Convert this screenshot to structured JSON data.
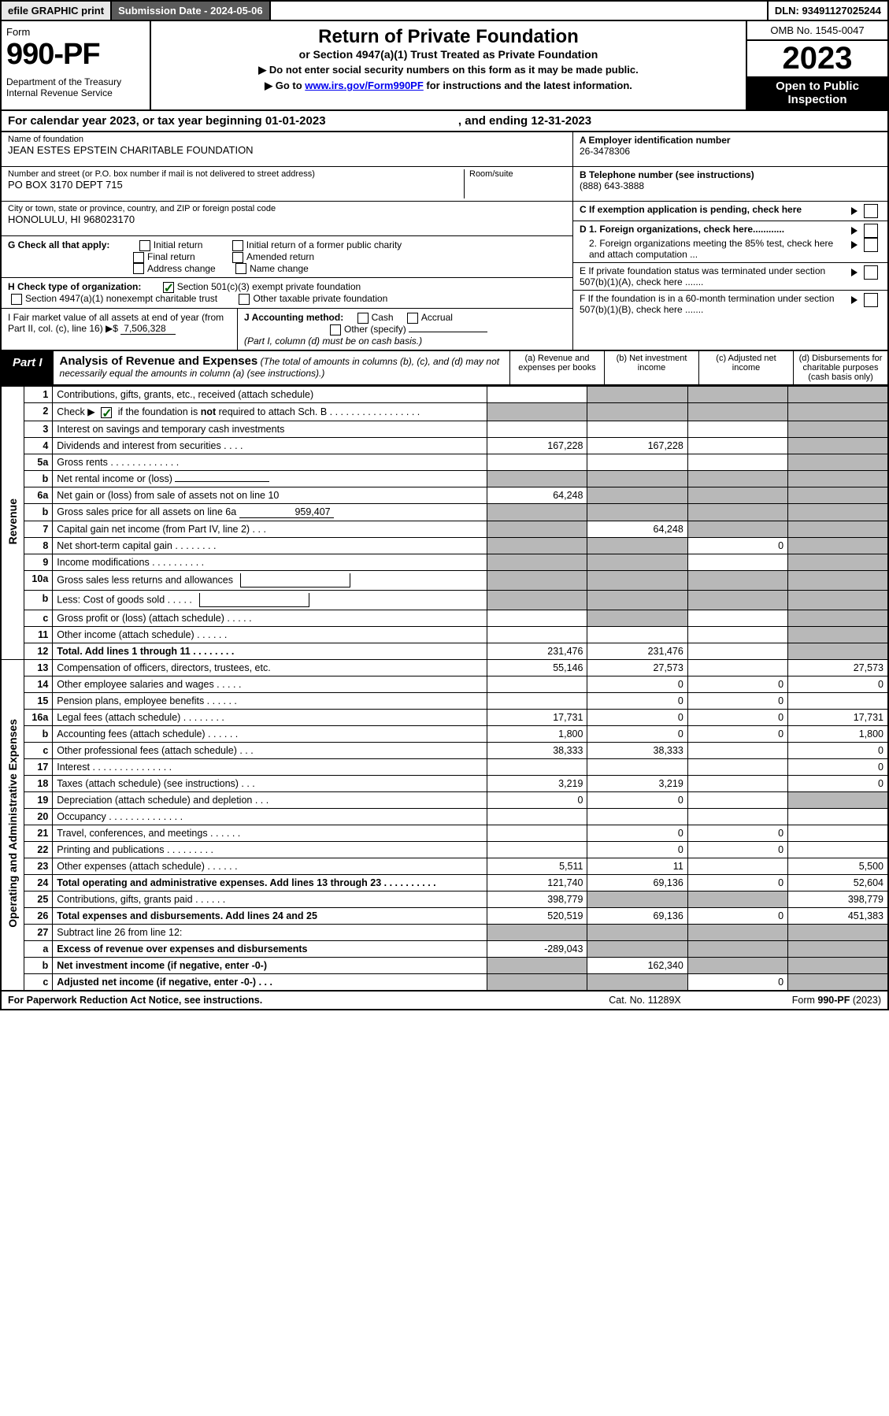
{
  "topbar": {
    "efile": "efile GRAPHIC print",
    "subdate": "Submission Date - 2024-05-06",
    "dln": "DLN: 93491127025244"
  },
  "header": {
    "formword": "Form",
    "formno": "990-PF",
    "dept": "Department of the Treasury\nInternal Revenue Service",
    "title": "Return of Private Foundation",
    "subtitle": "or Section 4947(a)(1) Trust Treated as Private Foundation",
    "instr1": "▶ Do not enter social security numbers on this form as it may be made public.",
    "instr2_pre": "▶ Go to ",
    "instr2_link": "www.irs.gov/Form990PF",
    "instr2_post": " for instructions and the latest information.",
    "omb": "OMB No. 1545-0047",
    "year": "2023",
    "open": "Open to Public Inspection"
  },
  "period": {
    "text_pre": "For calendar year 2023, or tax year beginning ",
    "begin": "01-01-2023",
    "text_mid": ", and ending ",
    "end": "12-31-2023"
  },
  "entity": {
    "name_lbl": "Name of foundation",
    "name_val": "JEAN ESTES EPSTEIN CHARITABLE FOUNDATION",
    "addr_lbl": "Number and street (or P.O. box number if mail is not delivered to street address)",
    "addr_val": "PO BOX 3170 DEPT 715",
    "room_lbl": "Room/suite",
    "city_lbl": "City or town, state or province, country, and ZIP or foreign postal code",
    "city_val": "HONOLULU, HI  968023170",
    "a_lbl": "A Employer identification number",
    "a_val": "26-3478306",
    "b_lbl": "B Telephone number (see instructions)",
    "b_val": "(888) 643-3888",
    "c_lbl": "C If exemption application is pending, check here",
    "d1": "D 1. Foreign organizations, check here............",
    "d2": "2. Foreign organizations meeting the 85% test, check here and attach computation ...",
    "e_lbl": "E  If private foundation status was terminated under section 507(b)(1)(A), check here .......",
    "f_lbl": "F  If the foundation is in a 60-month termination under section 507(b)(1)(B), check here .......",
    "g_lbl": "G Check all that apply:",
    "g_opts": [
      "Initial return",
      "Initial return of a former public charity",
      "Final return",
      "Amended return",
      "Address change",
      "Name change"
    ],
    "h_lbl": "H Check type of organization:",
    "h_opt1": "Section 501(c)(3) exempt private foundation",
    "h_opt2": "Section 4947(a)(1) nonexempt charitable trust",
    "h_opt3": "Other taxable private foundation",
    "i_lbl": "I Fair market value of all assets at end of year (from Part II, col. (c), line 16) ▶$ ",
    "i_val": "7,506,328",
    "j_lbl": "J Accounting method:",
    "j_opts": [
      "Cash",
      "Accrual",
      "Other (specify)"
    ],
    "j_note": "(Part I, column (d) must be on cash basis.)"
  },
  "part1": {
    "tab": "Part I",
    "title": "Analysis of Revenue and Expenses",
    "title_note": "(The total of amounts in columns (b), (c), and (d) may not necessarily equal the amounts in column (a) (see instructions).)",
    "col_a": "(a)   Revenue and expenses per books",
    "col_b": "(b)   Net investment income",
    "col_c": "(c)   Adjusted net income",
    "col_d": "(d)   Disbursements for charitable purposes (cash basis only)",
    "side_rev": "Revenue",
    "side_exp": "Operating and Administrative Expenses"
  },
  "rows": [
    {
      "ln": "1",
      "desc": "Contributions, gifts, grants, etc., received (attach schedule)",
      "a": "",
      "b": "shade",
      "c": "shade",
      "d": "shade"
    },
    {
      "ln": "2",
      "desc": "Check ▶ ☑ if the foundation is not required to attach Sch. B  .  .  .  .  .  .  .  .  .  .  .  .  .  .  .  .  .",
      "a": "shade",
      "b": "shade",
      "c": "shade",
      "d": "shade",
      "checked": true
    },
    {
      "ln": "3",
      "desc": "Interest on savings and temporary cash investments",
      "a": "",
      "b": "",
      "c": "",
      "d": "shade"
    },
    {
      "ln": "4",
      "desc": "Dividends and interest from securities  .  .  .  .",
      "a": "167,228",
      "b": "167,228",
      "c": "",
      "d": "shade"
    },
    {
      "ln": "5a",
      "desc": "Gross rents  .  .  .  .  .  .  .  .  .  .  .  .  .",
      "a": "",
      "b": "",
      "c": "",
      "d": "shade"
    },
    {
      "ln": "b",
      "desc": "Net rental income or (loss) ________",
      "a": "shade",
      "b": "shade",
      "c": "shade",
      "d": "shade"
    },
    {
      "ln": "6a",
      "desc": "Net gain or (loss) from sale of assets not on line 10",
      "a": "64,248",
      "b": "shade",
      "c": "shade",
      "d": "shade"
    },
    {
      "ln": "b",
      "desc": "Gross sales price for all assets on line 6a ________",
      "a": "shade",
      "b": "shade",
      "c": "shade",
      "d": "shade",
      "sub": "959,407"
    },
    {
      "ln": "7",
      "desc": "Capital gain net income (from Part IV, line 2)  .  .  .",
      "a": "shade",
      "b": "64,248",
      "c": "shade",
      "d": "shade"
    },
    {
      "ln": "8",
      "desc": "Net short-term capital gain  .  .  .  .  .  .  .  .",
      "a": "shade",
      "b": "shade",
      "c": "0",
      "d": "shade"
    },
    {
      "ln": "9",
      "desc": "Income modifications  .  .  .  .  .  .  .  .  .  .",
      "a": "shade",
      "b": "shade",
      "c": "",
      "d": "shade"
    },
    {
      "ln": "10a",
      "desc": "Gross sales less returns and allowances ____",
      "a": "shade",
      "b": "shade",
      "c": "shade",
      "d": "shade"
    },
    {
      "ln": "b",
      "desc": "Less: Cost of goods sold  .  .  .  .  . ____",
      "a": "shade",
      "b": "shade",
      "c": "shade",
      "d": "shade"
    },
    {
      "ln": "c",
      "desc": "Gross profit or (loss) (attach schedule)  .  .  .  .  .",
      "a": "",
      "b": "shade",
      "c": "",
      "d": "shade"
    },
    {
      "ln": "11",
      "desc": "Other income (attach schedule)  .  .  .  .  .  .",
      "a": "",
      "b": "",
      "c": "",
      "d": "shade"
    },
    {
      "ln": "12",
      "desc": "Total. Add lines 1 through 11  .  .  .  .  .  .  .  .",
      "a": "231,476",
      "b": "231,476",
      "c": "",
      "d": "shade",
      "bold": true
    },
    {
      "ln": "13",
      "desc": "Compensation of officers, directors, trustees, etc.",
      "a": "55,146",
      "b": "27,573",
      "c": "",
      "d": "27,573"
    },
    {
      "ln": "14",
      "desc": "Other employee salaries and wages  .  .  .  .  .",
      "a": "",
      "b": "0",
      "c": "0",
      "d": "0"
    },
    {
      "ln": "15",
      "desc": "Pension plans, employee benefits  .  .  .  .  .  .",
      "a": "",
      "b": "0",
      "c": "0",
      "d": ""
    },
    {
      "ln": "16a",
      "desc": "Legal fees (attach schedule)  .  .  .  .  .  .  .  .",
      "a": "17,731",
      "b": "0",
      "c": "0",
      "d": "17,731"
    },
    {
      "ln": "b",
      "desc": "Accounting fees (attach schedule)  .  .  .  .  .  .",
      "a": "1,800",
      "b": "0",
      "c": "0",
      "d": "1,800"
    },
    {
      "ln": "c",
      "desc": "Other professional fees (attach schedule)  .  .  .",
      "a": "38,333",
      "b": "38,333",
      "c": "",
      "d": "0"
    },
    {
      "ln": "17",
      "desc": "Interest  .  .  .  .  .  .  .  .  .  .  .  .  .  .  .",
      "a": "",
      "b": "",
      "c": "",
      "d": "0"
    },
    {
      "ln": "18",
      "desc": "Taxes (attach schedule) (see instructions)  .  .  .",
      "a": "3,219",
      "b": "3,219",
      "c": "",
      "d": "0"
    },
    {
      "ln": "19",
      "desc": "Depreciation (attach schedule) and depletion  .  .  .",
      "a": "0",
      "b": "0",
      "c": "",
      "d": "shade"
    },
    {
      "ln": "20",
      "desc": "Occupancy  .  .  .  .  .  .  .  .  .  .  .  .  .  .",
      "a": "",
      "b": "",
      "c": "",
      "d": ""
    },
    {
      "ln": "21",
      "desc": "Travel, conferences, and meetings  .  .  .  .  .  .",
      "a": "",
      "b": "0",
      "c": "0",
      "d": ""
    },
    {
      "ln": "22",
      "desc": "Printing and publications  .  .  .  .  .  .  .  .  .",
      "a": "",
      "b": "0",
      "c": "0",
      "d": ""
    },
    {
      "ln": "23",
      "desc": "Other expenses (attach schedule)  .  .  .  .  .  .",
      "a": "5,511",
      "b": "11",
      "c": "",
      "d": "5,500"
    },
    {
      "ln": "24",
      "desc": "Total operating and administrative expenses. Add lines 13 through 23  .  .  .  .  .  .  .  .  .  .",
      "a": "121,740",
      "b": "69,136",
      "c": "0",
      "d": "52,604",
      "bold": true
    },
    {
      "ln": "25",
      "desc": "Contributions, gifts, grants paid  .  .  .  .  .  .",
      "a": "398,779",
      "b": "shade",
      "c": "shade",
      "d": "398,779"
    },
    {
      "ln": "26",
      "desc": "Total expenses and disbursements. Add lines 24 and 25",
      "a": "520,519",
      "b": "69,136",
      "c": "0",
      "d": "451,383",
      "bold": true
    },
    {
      "ln": "27",
      "desc": "Subtract line 26 from line 12:",
      "a": "shade",
      "b": "shade",
      "c": "shade",
      "d": "shade"
    },
    {
      "ln": "a",
      "desc": "Excess of revenue over expenses and disbursements",
      "a": "-289,043",
      "b": "shade",
      "c": "shade",
      "d": "shade",
      "bold": true
    },
    {
      "ln": "b",
      "desc": "Net investment income (if negative, enter -0-)",
      "a": "shade",
      "b": "162,340",
      "c": "shade",
      "d": "shade",
      "bold": true
    },
    {
      "ln": "c",
      "desc": "Adjusted net income (if negative, enter -0-)  .  .  .",
      "a": "shade",
      "b": "shade",
      "c": "0",
      "d": "shade",
      "bold": true
    }
  ],
  "footer": {
    "l": "For Paperwork Reduction Act Notice, see instructions.",
    "m": "Cat. No. 11289X",
    "r": "Form 990-PF (2023)"
  }
}
